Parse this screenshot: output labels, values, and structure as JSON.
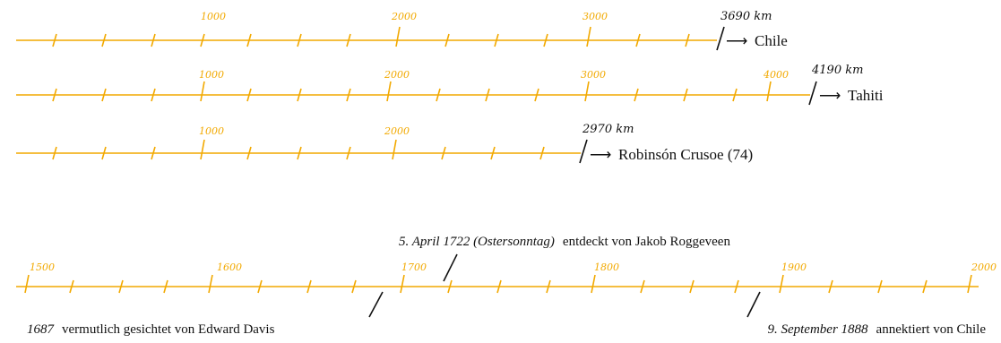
{
  "distances": [
    {
      "ticks": [
        "1000",
        "2000",
        "3000"
      ],
      "total_label": "3690 km",
      "destination": "Chile",
      "total": 3690,
      "colors": {
        "line": "#f2a900"
      }
    },
    {
      "ticks": [
        "1000",
        "2000",
        "3000",
        "4000"
      ],
      "total_label": "4190 km",
      "destination": "Tahiti",
      "total": 4190
    },
    {
      "ticks": [
        "1000",
        "2000"
      ],
      "total_label": "2970 km",
      "destination": "Robinsón Crusoe (74)",
      "total": 2970
    }
  ],
  "arrow_glyph": "⟶",
  "timeline": {
    "ticks": [
      "1500",
      "1600",
      "1700",
      "1800",
      "1900",
      "2000"
    ],
    "events": [
      {
        "year": 1722,
        "date": "5. April 1722 (Ostersonntag)",
        "text": "entdeckt von Jakob Roggeveen"
      },
      {
        "year": 1687,
        "date": "1687",
        "text": "vermutlich gesichtet von Edward Davis"
      },
      {
        "year": 1888,
        "date": "9. September 1888",
        "text": "annektiert von Chile"
      }
    ]
  },
  "colors": {
    "accent": "#f2a900",
    "ink": "#111111"
  }
}
